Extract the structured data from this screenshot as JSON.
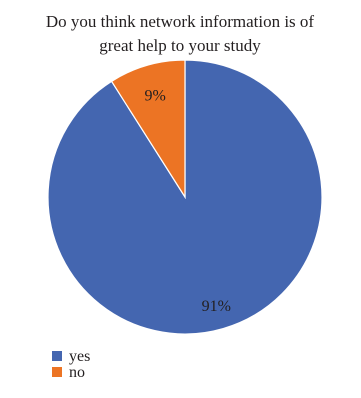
{
  "chart_data": {
    "type": "pie",
    "title": "Do you think network information is of great help to your study",
    "title_lines": [
      "Do you think network information is of",
      "great help to your study"
    ],
    "categories": [
      "yes",
      "no"
    ],
    "values": [
      91,
      9
    ],
    "labels": [
      "91%",
      "9%"
    ],
    "colors": [
      "#4466b0",
      "#ec7424"
    ],
    "legend_position": "bottom-left"
  }
}
